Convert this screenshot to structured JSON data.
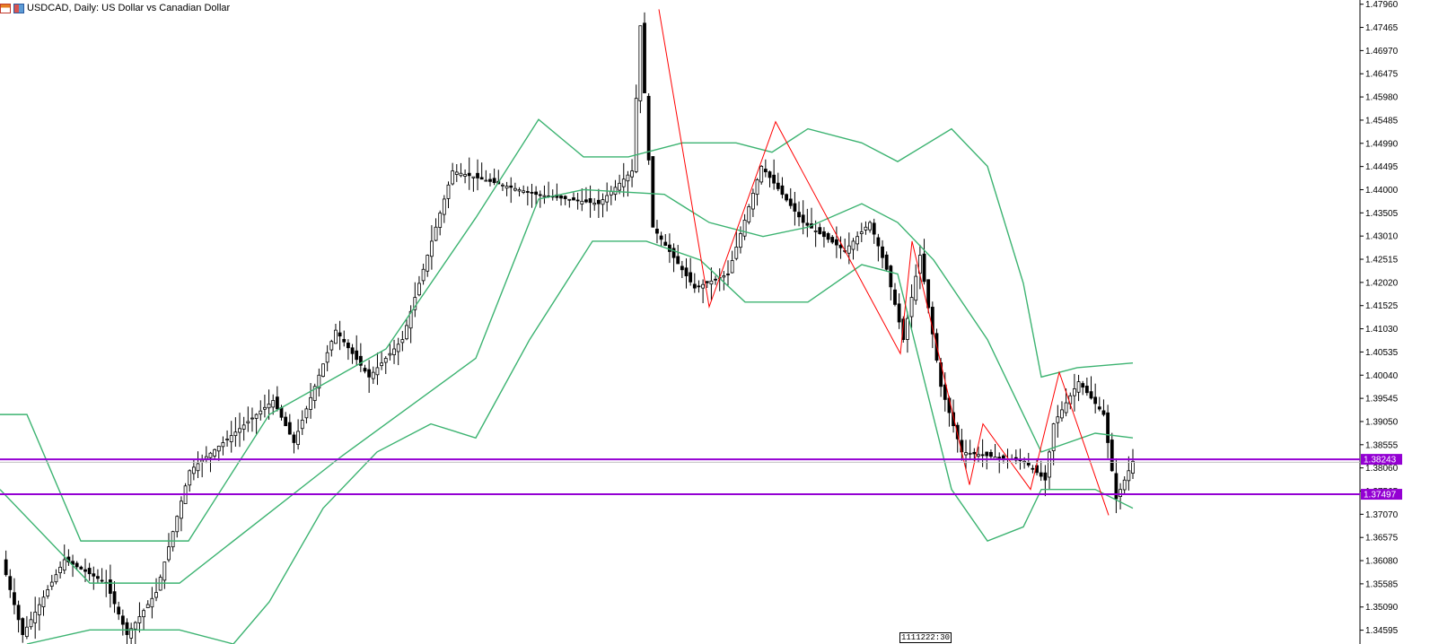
{
  "window": {
    "title": "USDCAD, Daily:  US Dollar vs Canadian Dollar",
    "icons": [
      "chart-window-icon",
      "symbol-icon"
    ]
  },
  "time_marker": "1111222:30",
  "colors": {
    "bull_fill": "#ffffff",
    "bear_fill": "#000000",
    "wick": "#000000",
    "bollinger": "#3cb371",
    "zigzag": "#ff0000",
    "hline": "#9400d3",
    "bid_line": "#c0c0c0"
  },
  "chart_data": {
    "type": "candlestick",
    "title": "USDCAD, Daily:  US Dollar vs Canadian Dollar",
    "ylim": [
      1.343,
      1.4805
    ],
    "y_ticks": [
      "1.47960",
      "1.47465",
      "1.46970",
      "1.46475",
      "1.45980",
      "1.45485",
      "1.44990",
      "1.44495",
      "1.44000",
      "1.43505",
      "1.43010",
      "1.42515",
      "1.42020",
      "1.41525",
      "1.41030",
      "1.40535",
      "1.40040",
      "1.39545",
      "1.39050",
      "1.38555",
      "1.38060",
      "1.37565",
      "1.37070",
      "1.36575",
      "1.36080",
      "1.35585",
      "1.35090",
      "1.34595"
    ],
    "horizontal_levels": [
      {
        "label": "1.38243",
        "value": 1.38243
      },
      {
        "label": "1.37497",
        "value": 1.37497
      }
    ],
    "current_bid": 1.3818,
    "segments": [
      {
        "from": 1.361,
        "to": 1.345,
        "count": 5
      },
      {
        "from": 1.345,
        "to": 1.361,
        "count": 10
      },
      {
        "from": 1.361,
        "to": 1.356,
        "count": 10
      },
      {
        "from": 1.356,
        "to": 1.345,
        "count": 5
      },
      {
        "from": 1.345,
        "to": 1.354,
        "count": 7
      },
      {
        "from": 1.354,
        "to": 1.38,
        "count": 8
      },
      {
        "from": 1.38,
        "to": 1.395,
        "count": 20
      },
      {
        "from": 1.395,
        "to": 1.386,
        "count": 5
      },
      {
        "from": 1.386,
        "to": 1.41,
        "count": 10
      },
      {
        "from": 1.41,
        "to": 1.4,
        "count": 8
      },
      {
        "from": 1.4,
        "to": 1.408,
        "count": 8
      },
      {
        "from": 1.408,
        "to": 1.444,
        "count": 12
      },
      {
        "from": 1.444,
        "to": 1.439,
        "count": 20
      },
      {
        "from": 1.439,
        "to": 1.437,
        "count": 15
      },
      {
        "from": 1.437,
        "to": 1.444,
        "count": 8
      },
      {
        "from": 1.444,
        "to": 1.475,
        "count": 2
      },
      {
        "from": 1.475,
        "to": 1.432,
        "count": 3
      },
      {
        "from": 1.432,
        "to": 1.419,
        "count": 10
      },
      {
        "from": 1.419,
        "to": 1.422,
        "count": 8
      },
      {
        "from": 1.422,
        "to": 1.445,
        "count": 8
      },
      {
        "from": 1.445,
        "to": 1.433,
        "count": 10
      },
      {
        "from": 1.433,
        "to": 1.427,
        "count": 10
      },
      {
        "from": 1.427,
        "to": 1.433,
        "count": 6
      },
      {
        "from": 1.433,
        "to": 1.423,
        "count": 4
      },
      {
        "from": 1.423,
        "to": 1.408,
        "count": 4
      },
      {
        "from": 1.408,
        "to": 1.426,
        "count": 4
      },
      {
        "from": 1.426,
        "to": 1.398,
        "count": 5
      },
      {
        "from": 1.398,
        "to": 1.384,
        "count": 5
      },
      {
        "from": 1.384,
        "to": 1.382,
        "count": 15
      },
      {
        "from": 1.382,
        "to": 1.378,
        "count": 5
      },
      {
        "from": 1.378,
        "to": 1.39,
        "count": 2
      },
      {
        "from": 1.39,
        "to": 1.399,
        "count": 6
      },
      {
        "from": 1.399,
        "to": 1.392,
        "count": 6
      },
      {
        "from": 1.392,
        "to": 1.374,
        "count": 3
      },
      {
        "from": 1.374,
        "to": 1.382,
        "count": 4
      }
    ],
    "bollinger": {
      "upper": [
        [
          0,
          1.392
        ],
        [
          30,
          1.392
        ],
        [
          90,
          1.365
        ],
        [
          210,
          1.365
        ],
        [
          300,
          1.392
        ],
        [
          430,
          1.406
        ],
        [
          530,
          1.434
        ],
        [
          600,
          1.455
        ],
        [
          650,
          1.447
        ],
        [
          700,
          1.447
        ],
        [
          760,
          1.45
        ],
        [
          820,
          1.45
        ],
        [
          860,
          1.448
        ],
        [
          900,
          1.453
        ],
        [
          960,
          1.45
        ],
        [
          1000,
          1.446
        ],
        [
          1060,
          1.453
        ],
        [
          1100,
          1.445
        ],
        [
          1140,
          1.42
        ],
        [
          1160,
          1.4
        ],
        [
          1200,
          1.402
        ],
        [
          1262,
          1.403
        ]
      ],
      "middle": [
        [
          0,
          1.376
        ],
        [
          100,
          1.356
        ],
        [
          200,
          1.356
        ],
        [
          300,
          1.371
        ],
        [
          380,
          1.383
        ],
        [
          480,
          1.397
        ],
        [
          530,
          1.404
        ],
        [
          600,
          1.438
        ],
        [
          650,
          1.44
        ],
        [
          740,
          1.439
        ],
        [
          790,
          1.433
        ],
        [
          850,
          1.43
        ],
        [
          900,
          1.432
        ],
        [
          960,
          1.437
        ],
        [
          1000,
          1.433
        ],
        [
          1040,
          1.425
        ],
        [
          1100,
          1.408
        ],
        [
          1160,
          1.384
        ],
        [
          1220,
          1.388
        ],
        [
          1262,
          1.387
        ]
      ],
      "lower": [
        [
          30,
          1.343
        ],
        [
          100,
          1.346
        ],
        [
          200,
          1.346
        ],
        [
          260,
          1.343
        ],
        [
          300,
          1.352
        ],
        [
          360,
          1.372
        ],
        [
          420,
          1.384
        ],
        [
          480,
          1.39
        ],
        [
          530,
          1.387
        ],
        [
          590,
          1.408
        ],
        [
          660,
          1.429
        ],
        [
          720,
          1.429
        ],
        [
          780,
          1.425
        ],
        [
          830,
          1.416
        ],
        [
          900,
          1.416
        ],
        [
          960,
          1.424
        ],
        [
          1000,
          1.422
        ],
        [
          1060,
          1.376
        ],
        [
          1100,
          1.365
        ],
        [
          1140,
          1.368
        ],
        [
          1160,
          1.376
        ],
        [
          1220,
          1.376
        ],
        [
          1262,
          1.372
        ]
      ]
    },
    "zigzag": [
      [
        734,
        1.4785
      ],
      [
        790,
        1.415
      ],
      [
        864,
        1.4545
      ],
      [
        1003,
        1.405
      ],
      [
        1016,
        1.429
      ],
      [
        1080,
        1.377
      ],
      [
        1095,
        1.39
      ],
      [
        1148,
        1.376
      ],
      [
        1180,
        1.401
      ],
      [
        1235,
        1.3705
      ]
    ]
  }
}
